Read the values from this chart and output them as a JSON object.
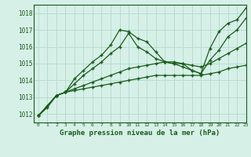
{
  "title": "Graphe pression niveau de la mer (hPa)",
  "background_color": "#d6f0e8",
  "line_color": "#1a5c1a",
  "grid_color": "#b8ddd0",
  "xlim": [
    -0.5,
    23
  ],
  "ylim": [
    1011.5,
    1018.5
  ],
  "yticks": [
    1012,
    1013,
    1014,
    1015,
    1016,
    1017,
    1018
  ],
  "xticks": [
    0,
    1,
    2,
    3,
    4,
    5,
    6,
    7,
    8,
    9,
    10,
    11,
    12,
    13,
    14,
    15,
    16,
    17,
    18,
    19,
    20,
    21,
    22,
    23
  ],
  "series": [
    {
      "x": [
        0,
        1,
        2,
        3,
        4,
        5,
        6,
        7,
        8,
        9,
        10,
        11,
        12,
        13,
        14,
        15,
        16,
        17,
        18,
        19,
        20,
        21,
        22,
        23
      ],
      "y": [
        1011.9,
        1012.5,
        1013.1,
        1013.3,
        1014.1,
        1014.6,
        1015.1,
        1015.5,
        1016.1,
        1017.0,
        1016.9,
        1016.5,
        1016.3,
        1015.7,
        1015.1,
        1015.0,
        1015.0,
        1014.6,
        1014.4,
        1015.9,
        1016.9,
        1017.4,
        1017.6,
        1018.3
      ]
    },
    {
      "x": [
        0,
        1,
        2,
        3,
        4,
        5,
        6,
        7,
        8,
        9,
        10,
        11,
        12,
        13,
        14,
        15,
        16,
        17,
        18,
        19,
        20,
        21,
        22,
        23
      ],
      "y": [
        1011.9,
        1012.4,
        1013.1,
        1013.3,
        1013.8,
        1014.3,
        1014.7,
        1015.1,
        1015.6,
        1016.0,
        1016.8,
        1016.0,
        1015.7,
        1015.3,
        1015.1,
        1015.0,
        1014.8,
        1014.6,
        1014.4,
        1015.2,
        1015.8,
        1016.6,
        1017.0,
        1017.7
      ]
    },
    {
      "x": [
        0,
        2,
        3,
        4,
        5,
        6,
        7,
        8,
        9,
        10,
        11,
        12,
        13,
        14,
        15,
        16,
        17,
        18,
        19,
        20,
        21,
        22,
        23
      ],
      "y": [
        1011.9,
        1013.1,
        1013.3,
        1013.5,
        1013.7,
        1013.9,
        1014.1,
        1014.3,
        1014.5,
        1014.7,
        1014.8,
        1014.9,
        1015.0,
        1015.1,
        1015.1,
        1015.0,
        1014.9,
        1014.8,
        1015.0,
        1015.3,
        1015.6,
        1015.9,
        1016.2
      ]
    },
    {
      "x": [
        0,
        2,
        3,
        4,
        5,
        6,
        7,
        8,
        9,
        10,
        11,
        12,
        13,
        14,
        15,
        16,
        17,
        18,
        19,
        20,
        21,
        22,
        23
      ],
      "y": [
        1011.9,
        1013.1,
        1013.3,
        1013.4,
        1013.5,
        1013.6,
        1013.7,
        1013.8,
        1013.9,
        1014.0,
        1014.1,
        1014.2,
        1014.3,
        1014.3,
        1014.3,
        1014.3,
        1014.3,
        1014.3,
        1014.4,
        1014.5,
        1014.7,
        1014.8,
        1014.9
      ]
    }
  ]
}
